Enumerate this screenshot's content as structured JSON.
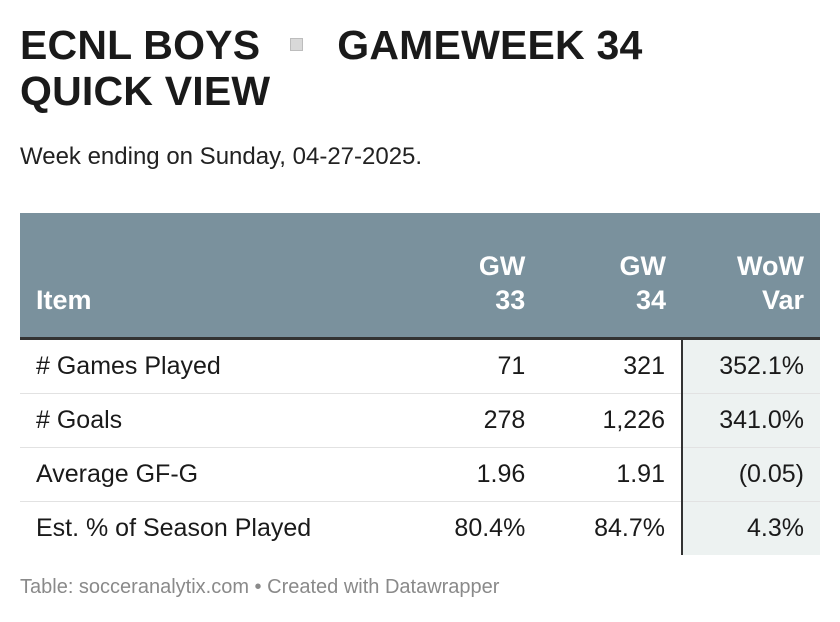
{
  "header": {
    "title_part1": "ECNL BOYS",
    "title_part2": "GAMEWEEK 34",
    "title_line2": "QUICK VIEW",
    "subtitle": "Week ending on Sunday, 04-27-2025."
  },
  "table": {
    "columns": [
      {
        "line1": "",
        "line2": "Item"
      },
      {
        "line1": "GW",
        "line2": "33"
      },
      {
        "line1": "GW",
        "line2": "34"
      },
      {
        "line1": "WoW",
        "line2": "Var"
      }
    ],
    "rows": [
      {
        "item": "# Games Played",
        "gw33": "71",
        "gw34": "321",
        "var": "352.1%"
      },
      {
        "item": "# Goals",
        "gw33": "278",
        "gw34": "1,226",
        "var": "341.0%"
      },
      {
        "item": "Average GF-G",
        "gw33": "1.96",
        "gw34": "1.91",
        "var": "(0.05)"
      },
      {
        "item": "Est. % of Season Played",
        "gw33": "80.4%",
        "gw34": "84.7%",
        "var": "4.3%"
      }
    ]
  },
  "footer": {
    "source": "Table: socceranalytix.com",
    "separator": "•",
    "credit": "Created with Datawrapper"
  },
  "colors": {
    "header_bg": "#7a919d",
    "var_column_bg": "#edf2f1",
    "footer_text": "#8a8a8a"
  },
  "chart_data": {
    "type": "table",
    "title": "ECNL BOYS GAMEWEEK 34 QUICK VIEW",
    "subtitle": "Week ending on Sunday, 04-27-2025.",
    "columns": [
      "Item",
      "GW 33",
      "GW 34",
      "WoW Var"
    ],
    "rows": [
      [
        "# Games Played",
        "71",
        "321",
        "352.1%"
      ],
      [
        "# Goals",
        "278",
        "1,226",
        "341.0%"
      ],
      [
        "Average GF-G",
        "1.96",
        "1.91",
        "(0.05)"
      ],
      [
        "Est. % of Season Played",
        "80.4%",
        "84.7%",
        "4.3%"
      ]
    ]
  }
}
